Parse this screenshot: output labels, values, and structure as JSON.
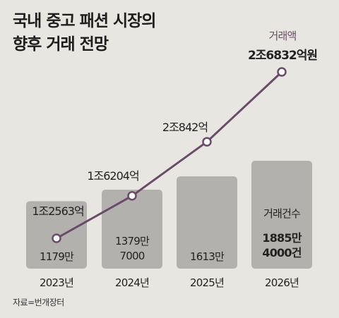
{
  "title_lines": [
    "국내 중고 패션 시장의",
    "향후 거래 전망"
  ],
  "source": "자료=번개장터",
  "colors": {
    "background": "#e8e6e1",
    "bar": "#b3b1ad",
    "line": "#6b4b6a",
    "marker_fill": "#ffffff",
    "text": "#222222"
  },
  "chart_data": {
    "type": "bar+line",
    "categories": [
      "2023년",
      "2024년",
      "2025년",
      "2026년"
    ],
    "bar_series": {
      "name": "거래건수",
      "values": [
        11790000,
        13797000,
        16130000,
        18854000
      ],
      "labels": [
        [
          "1179만"
        ],
        [
          "1379만",
          "7000"
        ],
        [
          "1613만"
        ],
        [
          "1885만",
          "4000건"
        ]
      ]
    },
    "line_series": {
      "name": "거래액",
      "values": [
        1.2563,
        1.6204,
        2.0842,
        2.6832
      ],
      "labels": [
        "1조2563억",
        "1조6204억",
        "2조842억",
        "2조6832억원"
      ]
    }
  }
}
